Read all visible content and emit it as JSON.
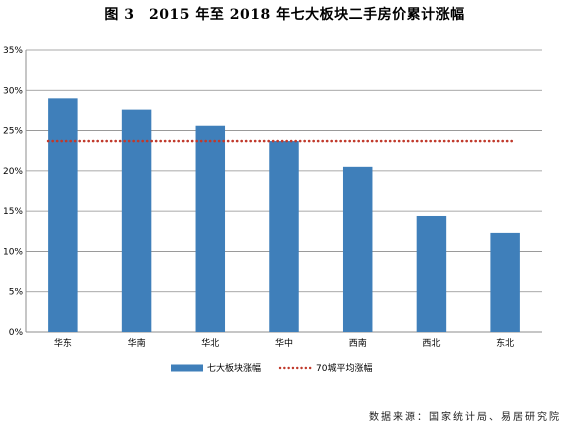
{
  "chart_data": {
    "type": "bar",
    "title": "图 3　2015 年至 2018 年七大板块二手房价累计涨幅",
    "categories": [
      "华东",
      "华南",
      "华北",
      "华中",
      "西南",
      "西北",
      "东北"
    ],
    "series": [
      {
        "name": "七大板块涨幅",
        "type": "bar",
        "color": "#3f7fba",
        "values": [
          29.0,
          27.6,
          25.6,
          23.7,
          20.5,
          14.4,
          12.3
        ]
      },
      {
        "name": "70城平均涨幅",
        "type": "line",
        "style": "dotted",
        "color": "#c0392b",
        "value": 23.7
      }
    ],
    "yaxis": {
      "ticks": [
        "0%",
        "5%",
        "10%",
        "15%",
        "20%",
        "25%",
        "30%",
        "35%"
      ],
      "min": 0,
      "max": 35,
      "step": 5
    },
    "grid": true,
    "legend_position": "bottom"
  },
  "source_note": "数据来源：国家统计局、易居研究院"
}
